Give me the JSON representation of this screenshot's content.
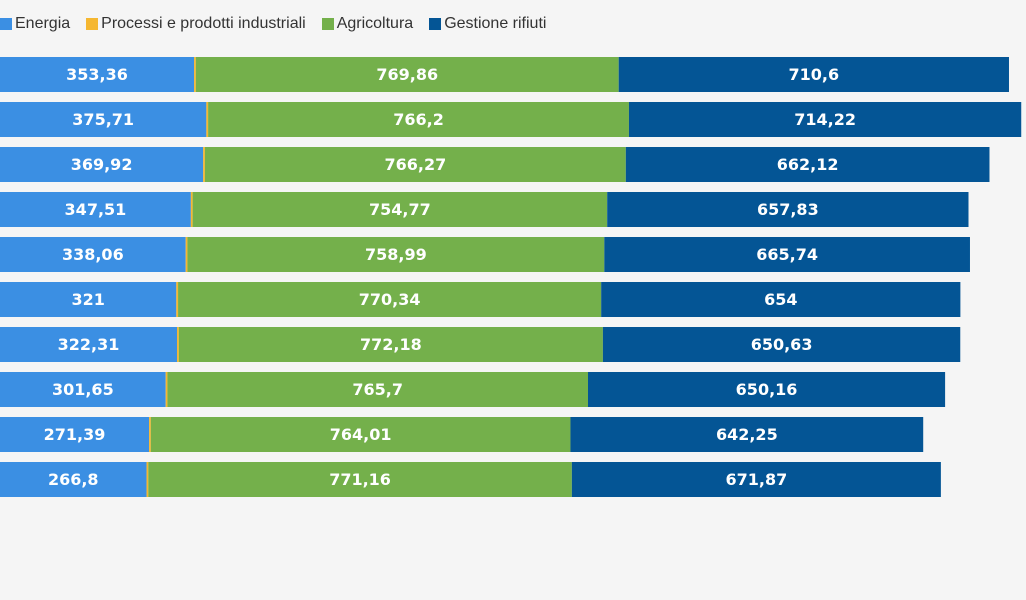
{
  "chart_data": {
    "type": "bar",
    "orientation": "horizontal",
    "stacked": true,
    "legend_position": "top-left",
    "grid": false,
    "xlim": [
      0,
      1868
    ],
    "series": [
      {
        "name": "Energia",
        "color": "#3b8fe3",
        "values": [
          353.36,
          375.71,
          369.92,
          347.51,
          338.06,
          321,
          322.31,
          301.65,
          271.39,
          266.8
        ],
        "labels": [
          "353,36",
          "375,71",
          "369,92",
          "347,51",
          "338,06",
          "321",
          "322,31",
          "301,65",
          "271,39",
          "266,8"
        ]
      },
      {
        "name": "Processi e prodotti industriali",
        "color": "#f5b731",
        "values": [
          3.2,
          3.2,
          3.2,
          3.2,
          3.2,
          3.2,
          3.2,
          3.2,
          3.2,
          3.2
        ],
        "labels": [
          "",
          "",
          "",
          "",
          "",
          "",
          "",
          "",
          "",
          ""
        ]
      },
      {
        "name": "Agricoltura",
        "color": "#74b04b",
        "values": [
          769.86,
          766.2,
          766.27,
          754.77,
          758.99,
          770.34,
          772.18,
          765.7,
          764.01,
          771.16
        ],
        "labels": [
          "769,86",
          "766,2",
          "766,27",
          "754,77",
          "758,99",
          "770,34",
          "772,18",
          "765,7",
          "764,01",
          "771,16"
        ]
      },
      {
        "name": "Gestione rifiuti",
        "color": "#045595",
        "values": [
          710.6,
          714.22,
          662.12,
          657.83,
          665.74,
          654,
          650.63,
          650.16,
          642.25,
          671.87
        ],
        "labels": [
          "710,6",
          "714,22",
          "662,12",
          "657,83",
          "665,74",
          "654",
          "650,63",
          "650,16",
          "642,25",
          "671,87"
        ]
      }
    ]
  }
}
